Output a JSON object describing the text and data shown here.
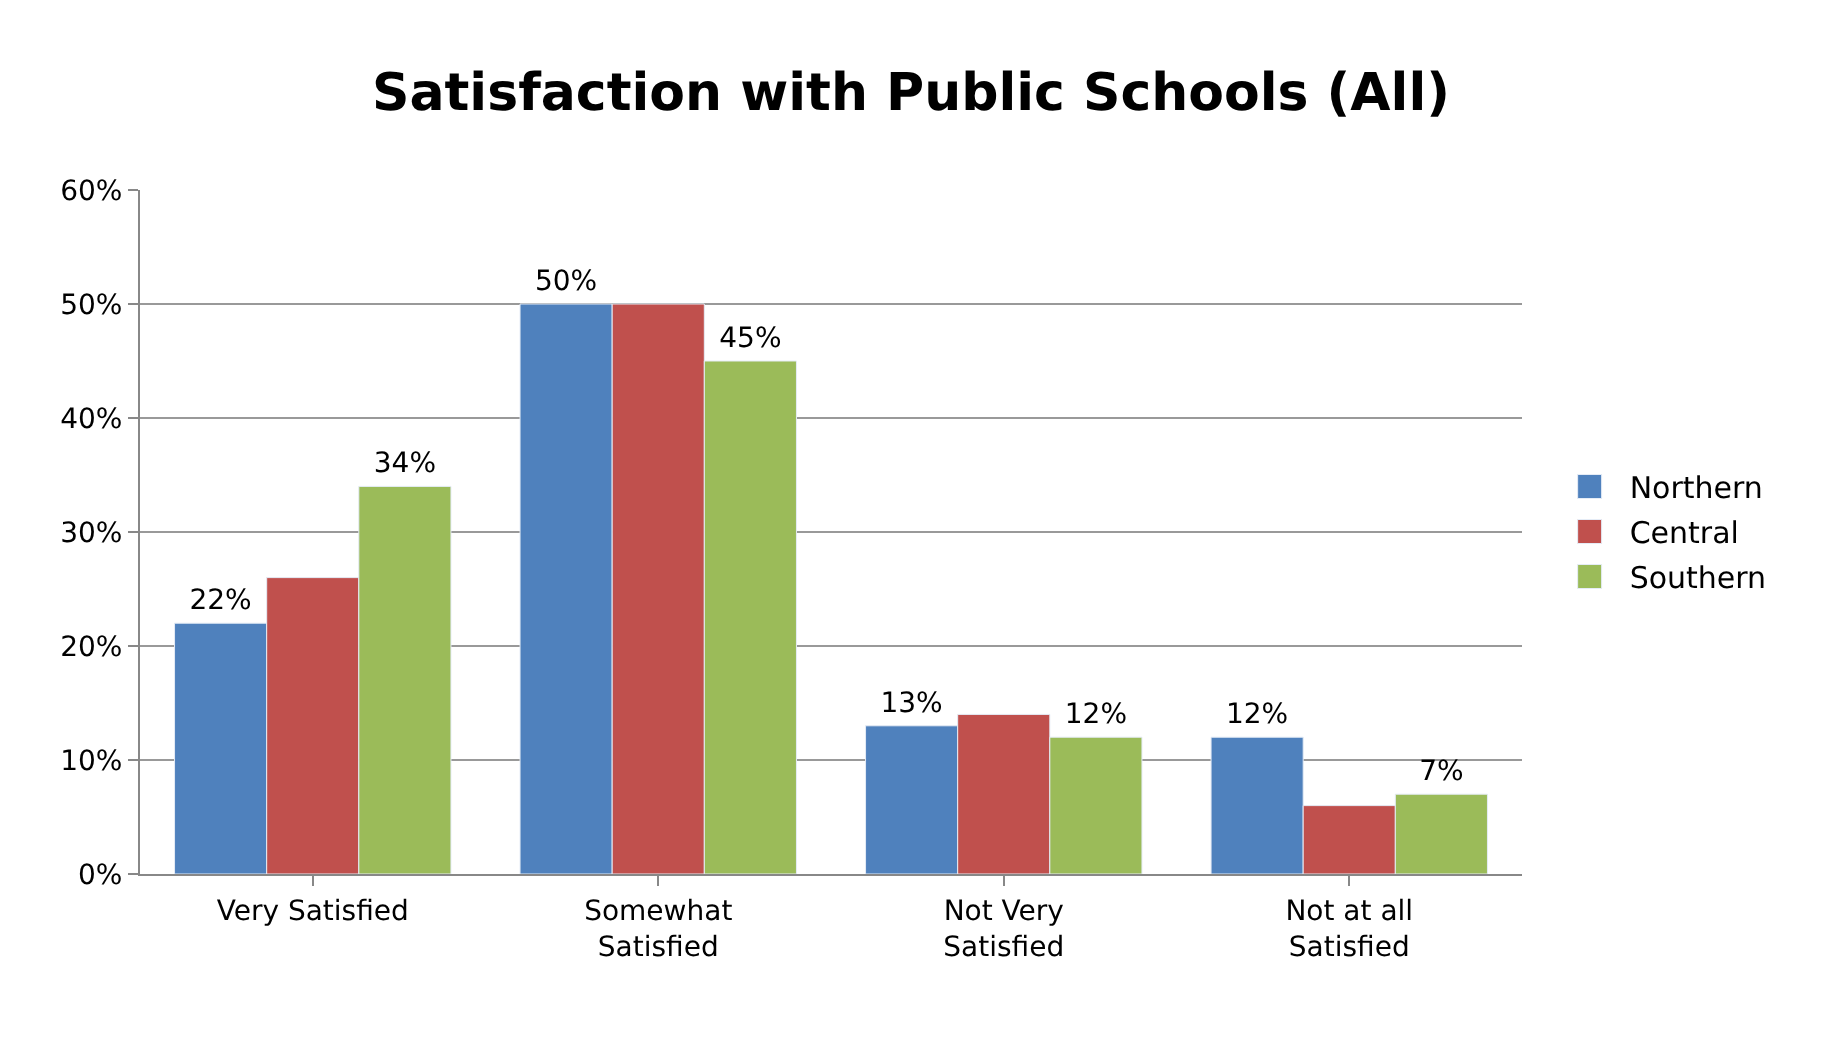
{
  "chart_data": {
    "type": "bar",
    "title": "Satisfaction with Public Schools (All)",
    "categories": [
      "Very Satisfied",
      "Somewhat\nSatisfied",
      "Not Very\nSatisfied",
      "Not at all\nSatisfied"
    ],
    "series": [
      {
        "name": "Northern",
        "color": "#4f81bd",
        "values": [
          22,
          50,
          13,
          12
        ],
        "value_labels": [
          "22%",
          "50%",
          "13%",
          "12%"
        ]
      },
      {
        "name": "Central",
        "color": "#c0504d",
        "values": [
          26,
          50,
          14,
          6
        ]
      },
      {
        "name": "Southern",
        "color": "#9bbb59",
        "values": [
          34,
          45,
          12,
          7
        ],
        "value_labels": [
          "34%",
          "45%",
          "12%",
          "7%"
        ]
      }
    ],
    "ylim": [
      0,
      60
    ],
    "yticks": [
      {
        "value": 0,
        "label": "0%"
      },
      {
        "value": 10,
        "label": "10%"
      },
      {
        "value": 20,
        "label": "20%"
      },
      {
        "value": 30,
        "label": "30%"
      },
      {
        "value": 40,
        "label": "40%"
      },
      {
        "value": 50,
        "label": "50%"
      },
      {
        "value": 60,
        "label": "60%"
      }
    ],
    "grid": "y",
    "legend": "right"
  }
}
